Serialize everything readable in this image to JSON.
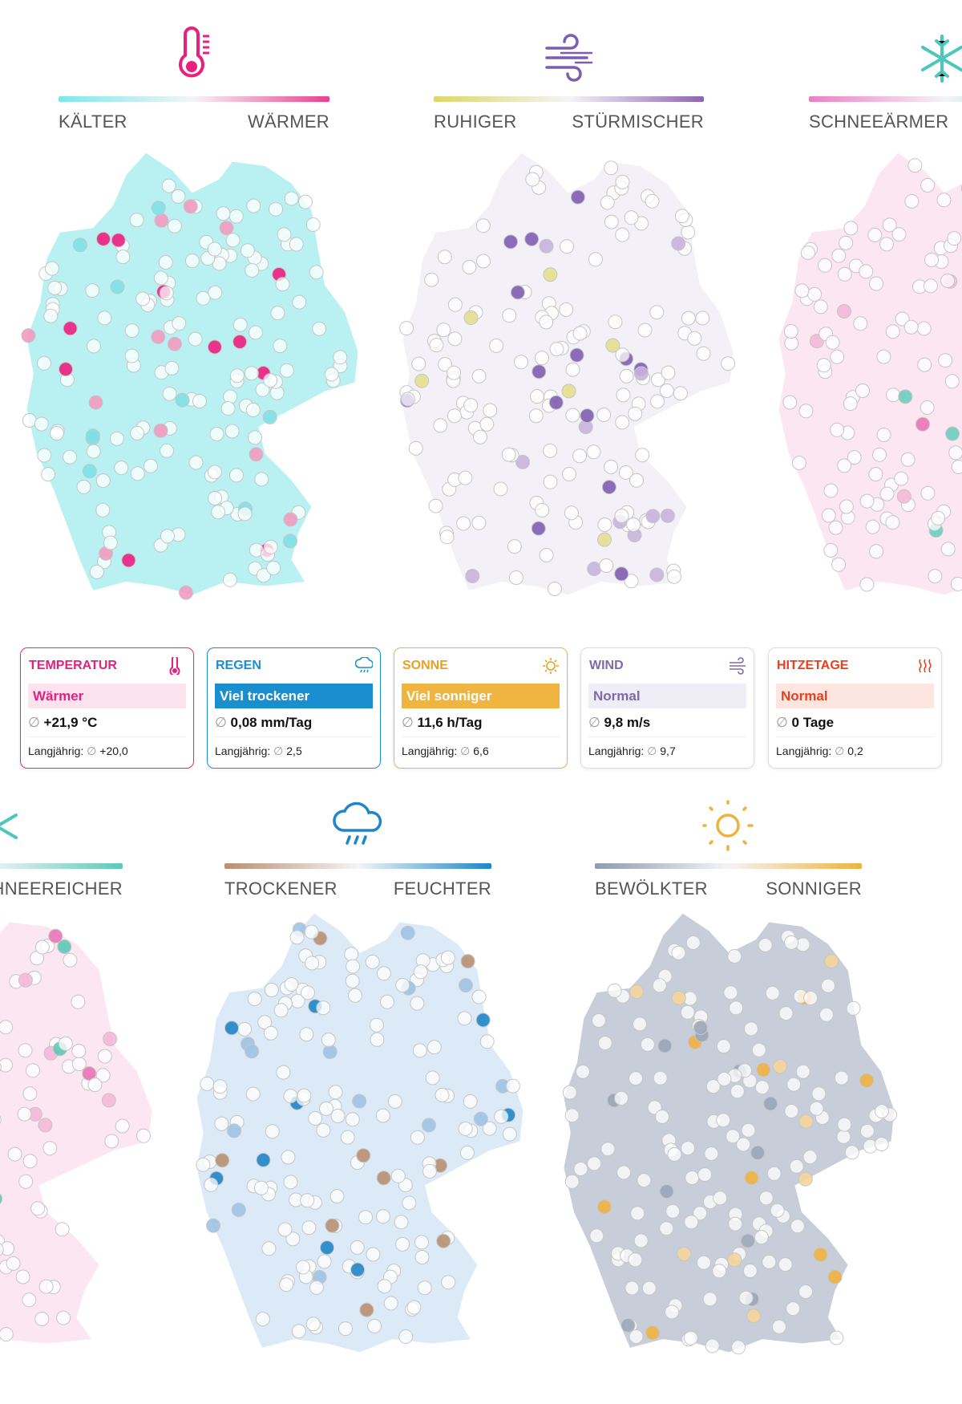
{
  "top_row": [
    {
      "low": "KÄLTER",
      "high": "WÄRMER"
    },
    {
      "low": "RUHIGER",
      "high": "STÜRMISCHER"
    },
    {
      "low": "SCHNEEÄRMER"
    }
  ],
  "cards": [
    {
      "title": "TEMPERATUR",
      "status": "Wärmer",
      "average": {
        "symbol": "∅",
        "value": "+21,9 °C"
      },
      "longterm": {
        "label": "Langjährig:",
        "symbol": "∅",
        "value": "+20,0"
      }
    },
    {
      "title": "REGEN",
      "status": "Viel trockener",
      "average": {
        "symbol": "∅",
        "value": "0,08 mm/Tag"
      },
      "longterm": {
        "label": "Langjährig:",
        "symbol": "∅",
        "value": "2,5"
      }
    },
    {
      "title": "SONNE",
      "status": "Viel sonniger",
      "average": {
        "symbol": "∅",
        "value": "11,6 h/Tag"
      },
      "longterm": {
        "label": "Langjährig:",
        "symbol": "∅",
        "value": "6,6"
      }
    },
    {
      "title": "WIND",
      "status": "Normal",
      "average": {
        "symbol": "∅",
        "value": "9,8 m/s"
      },
      "longterm": {
        "label": "Langjährig:",
        "symbol": "∅",
        "value": "9,7"
      }
    },
    {
      "title": "HITZETAGE",
      "status": "Normal",
      "average": {
        "symbol": "∅",
        "value": "0 Tage"
      },
      "longterm": {
        "label": "Langjährig:",
        "symbol": "∅",
        "value": "0,2"
      }
    }
  ],
  "bottom_row": [
    {
      "high": "SCHNEEREICHER"
    },
    {
      "low": "TROCKENER",
      "high": "FEUCHTER"
    },
    {
      "low": "BEWÖLKTER",
      "high": "SONNIGER"
    }
  ]
}
